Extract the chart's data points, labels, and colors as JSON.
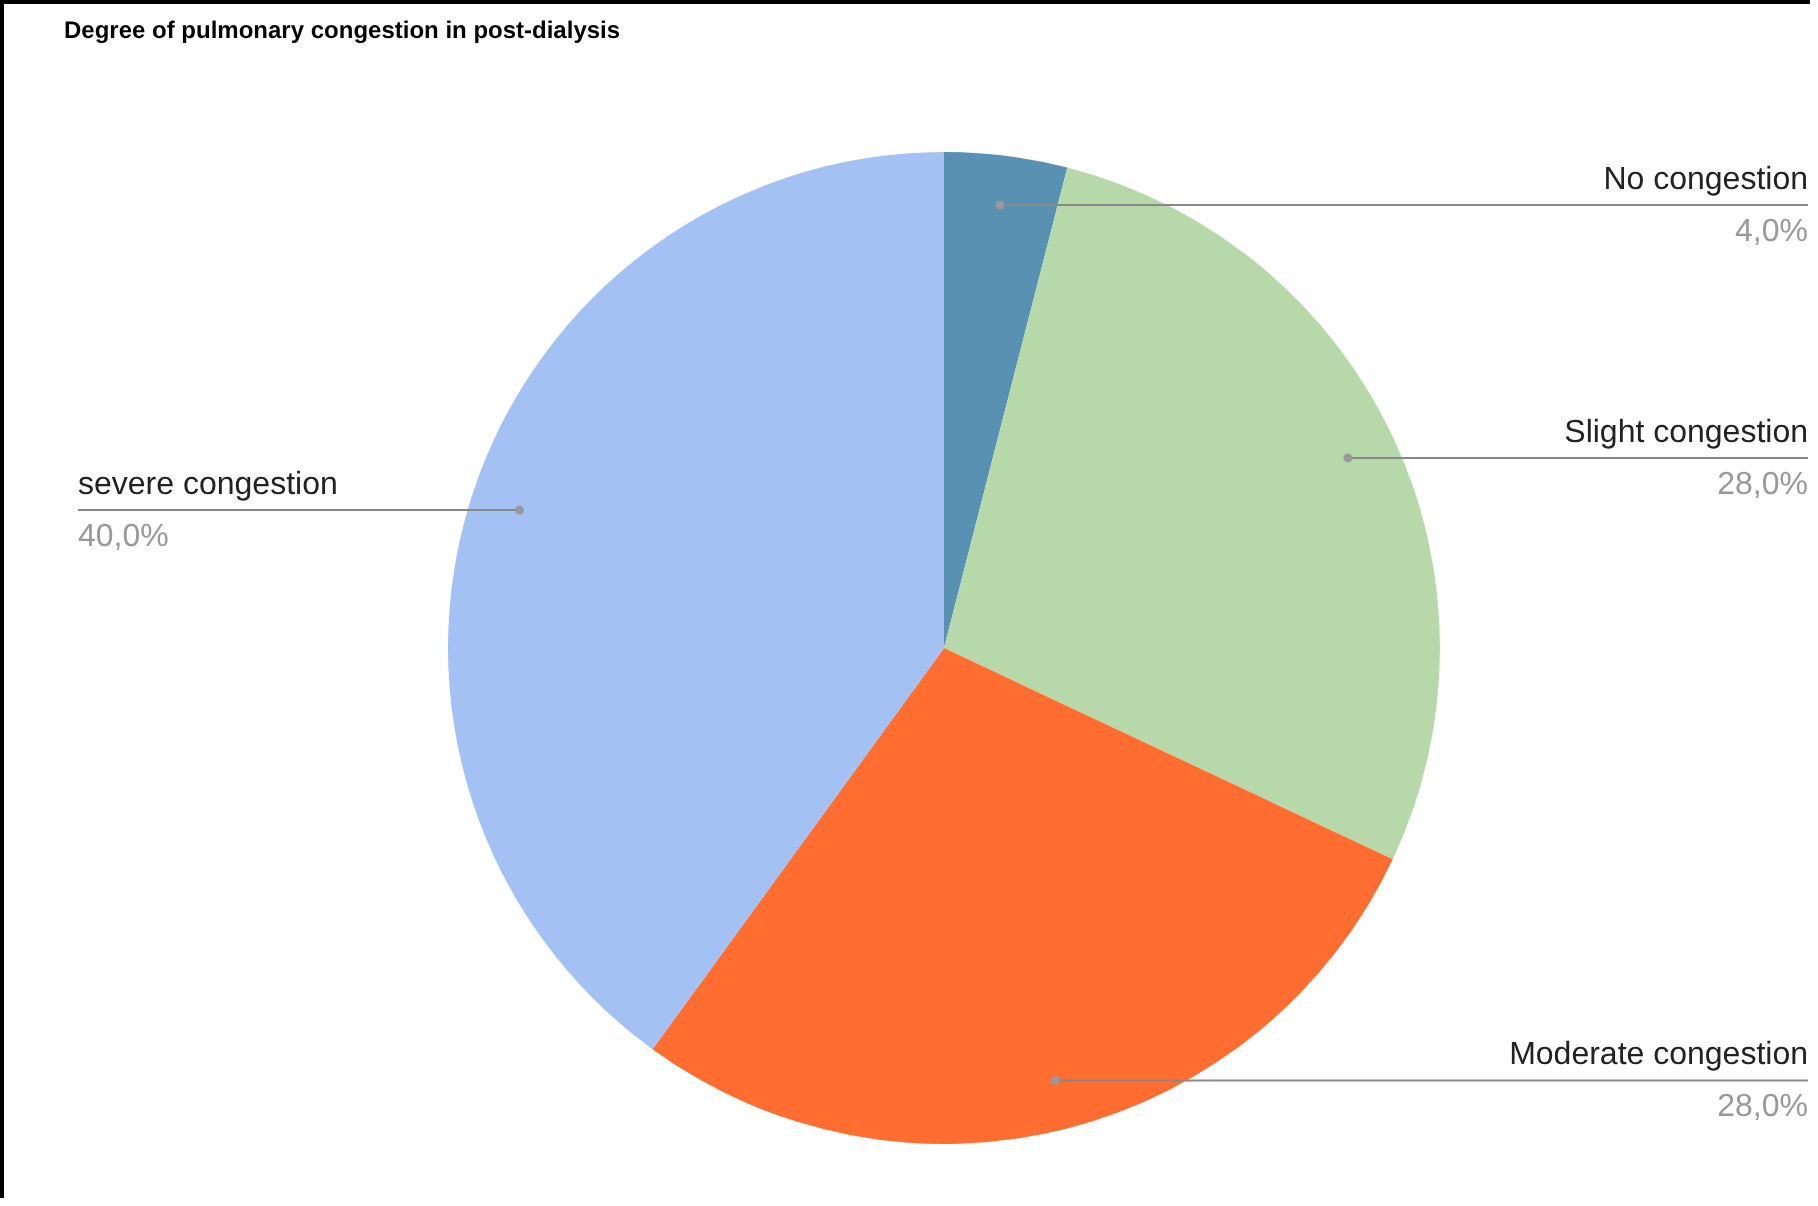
{
  "chart_data": {
    "type": "pie",
    "title": "Degree of pulmonary congestion in post-dialysis",
    "categories": [
      "No congestion",
      "Slight congestion",
      "Moderate congestion",
      "severe congestion"
    ],
    "values": [
      4,
      28,
      28,
      40
    ],
    "colors": [
      "#5891b1",
      "#b7d8a9",
      "#ff6d31",
      "#a4c1f4"
    ],
    "value_labels": [
      "4,0%",
      "28,0%",
      "28,0%",
      "40,0%"
    ]
  }
}
